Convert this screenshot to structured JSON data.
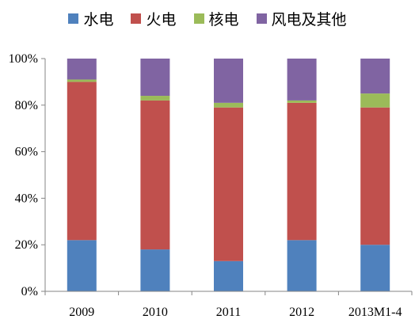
{
  "chart_data": {
    "type": "bar",
    "stacked": true,
    "categories": [
      "2009",
      "2010",
      "2011",
      "2012",
      "2013M1-4"
    ],
    "series": [
      {
        "name": "水电",
        "color": "#4f81bd",
        "values": [
          22,
          18,
          13,
          22,
          20
        ]
      },
      {
        "name": "火电",
        "color": "#c0504d",
        "values": [
          68,
          64,
          66,
          59,
          59
        ]
      },
      {
        "name": "核电",
        "color": "#9bbb59",
        "values": [
          1,
          2,
          2,
          1,
          6
        ]
      },
      {
        "name": "风电及其他",
        "color": "#8064a2",
        "values": [
          9,
          16,
          19,
          18,
          15
        ]
      }
    ],
    "ylim": [
      0,
      100
    ],
    "yticks": [
      "0%",
      "20%",
      "40%",
      "60%",
      "80%",
      "100%"
    ],
    "grid": false,
    "legend_position": "top",
    "title": "",
    "xlabel": "",
    "ylabel": ""
  }
}
